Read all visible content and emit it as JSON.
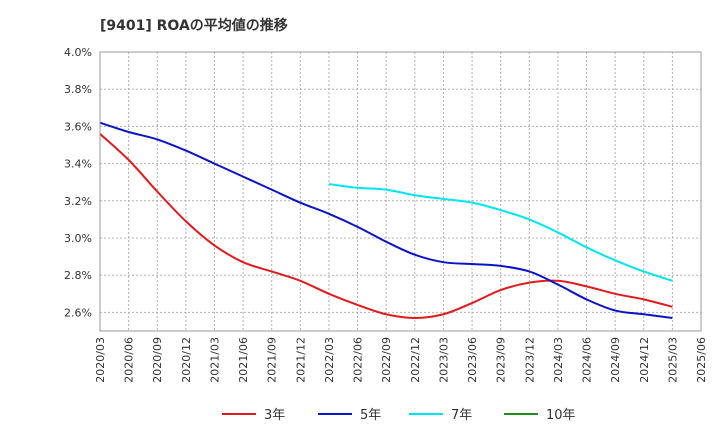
{
  "chart_data": {
    "type": "line",
    "title": "[9401]  ROAの平均値の推移",
    "xlabel": "",
    "ylabel": "",
    "ylim": [
      2.5,
      4.0
    ],
    "y_ticks": [
      "2.6%",
      "2.8%",
      "3.0%",
      "3.2%",
      "3.4%",
      "3.6%",
      "3.8%",
      "4.0%"
    ],
    "y_tick_values": [
      2.6,
      2.8,
      3.0,
      3.2,
      3.4,
      3.6,
      3.8,
      4.0
    ],
    "categories": [
      "2020/03",
      "2020/06",
      "2020/09",
      "2020/12",
      "2021/03",
      "2021/06",
      "2021/09",
      "2021/12",
      "2022/03",
      "2022/06",
      "2022/09",
      "2022/12",
      "2023/03",
      "2023/06",
      "2023/09",
      "2023/12",
      "2024/03",
      "2024/06",
      "2024/09",
      "2024/12",
      "2025/03",
      "2025/06"
    ],
    "grid": true,
    "legend_position": "bottom",
    "series": [
      {
        "name": "3年",
        "color": "#e31a1c",
        "values": [
          3.56,
          3.42,
          3.25,
          3.09,
          2.96,
          2.87,
          2.82,
          2.77,
          2.7,
          2.64,
          2.59,
          2.57,
          2.59,
          2.65,
          2.72,
          2.76,
          2.77,
          2.74,
          2.7,
          2.67,
          2.63,
          null
        ]
      },
      {
        "name": "5年",
        "color": "#0a14c8",
        "values": [
          3.62,
          3.57,
          3.53,
          3.47,
          3.4,
          3.33,
          3.26,
          3.19,
          3.13,
          3.06,
          2.98,
          2.91,
          2.87,
          2.86,
          2.85,
          2.82,
          2.75,
          2.67,
          2.61,
          2.59,
          2.57,
          null
        ]
      },
      {
        "name": "7年",
        "color": "#00e5ee",
        "values": [
          null,
          null,
          null,
          null,
          null,
          null,
          null,
          null,
          3.29,
          3.27,
          3.26,
          3.23,
          3.21,
          3.19,
          3.15,
          3.1,
          3.03,
          2.95,
          2.88,
          2.82,
          2.77,
          null
        ]
      },
      {
        "name": "10年",
        "color": "#228b22",
        "values": [
          null,
          null,
          null,
          null,
          null,
          null,
          null,
          null,
          null,
          null,
          null,
          null,
          null,
          null,
          null,
          null,
          null,
          null,
          null,
          null,
          null,
          null
        ]
      }
    ]
  }
}
